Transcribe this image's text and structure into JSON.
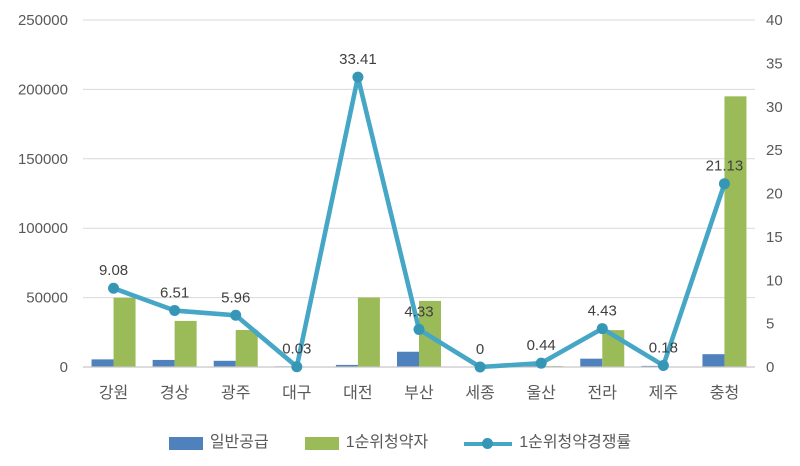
{
  "chart_data": {
    "type": "combo",
    "title": "",
    "categories": [
      "강원",
      "경상",
      "광주",
      "대구",
      "대전",
      "부산",
      "세종",
      "울산",
      "전라",
      "제주",
      "충청"
    ],
    "series": [
      {
        "name": "일반공급",
        "type": "bar",
        "axis": "left",
        "color": "#4F81BD",
        "values": [
          5500,
          5100,
          4470,
          500,
          1500,
          11000,
          300,
          1500,
          6000,
          800,
          9230
        ]
      },
      {
        "name": "1순위청약자",
        "type": "bar",
        "axis": "left",
        "color": "#9BBB59",
        "values": [
          49900,
          33200,
          26650,
          15,
          50100,
          47630,
          0,
          660,
          26580,
          145,
          195000
        ]
      },
      {
        "name": "1순위청약경쟁률",
        "type": "line",
        "axis": "right",
        "color": "#45A7C5",
        "marker_color": "#3696B6",
        "values": [
          9.08,
          6.51,
          5.96,
          0.03,
          33.41,
          4.33,
          0,
          0.44,
          4.43,
          0.18,
          21.13
        ],
        "labels": [
          "9.08",
          "6.51",
          "5.96",
          "0.03",
          "33.41",
          "4.33",
          "0",
          "0.44",
          "4.43",
          "0.18",
          "21.13"
        ]
      }
    ],
    "left_axis": {
      "min": 0,
      "max": 250000,
      "step": 50000,
      "ticks": [
        "0",
        "50000",
        "100000",
        "150000",
        "200000",
        "250000"
      ]
    },
    "right_axis": {
      "min": 0,
      "max": 40,
      "step": 5,
      "ticks": [
        "0",
        "5",
        "10",
        "15",
        "20",
        "25",
        "30",
        "35",
        "40"
      ]
    },
    "grid": true,
    "legend_position": "bottom",
    "style": {
      "grid_color": "#D9D9D9",
      "axis_color": "#C6C6C6",
      "tick_color": "#595959",
      "label_color": "#404040",
      "background": "#FFFFFF"
    }
  }
}
